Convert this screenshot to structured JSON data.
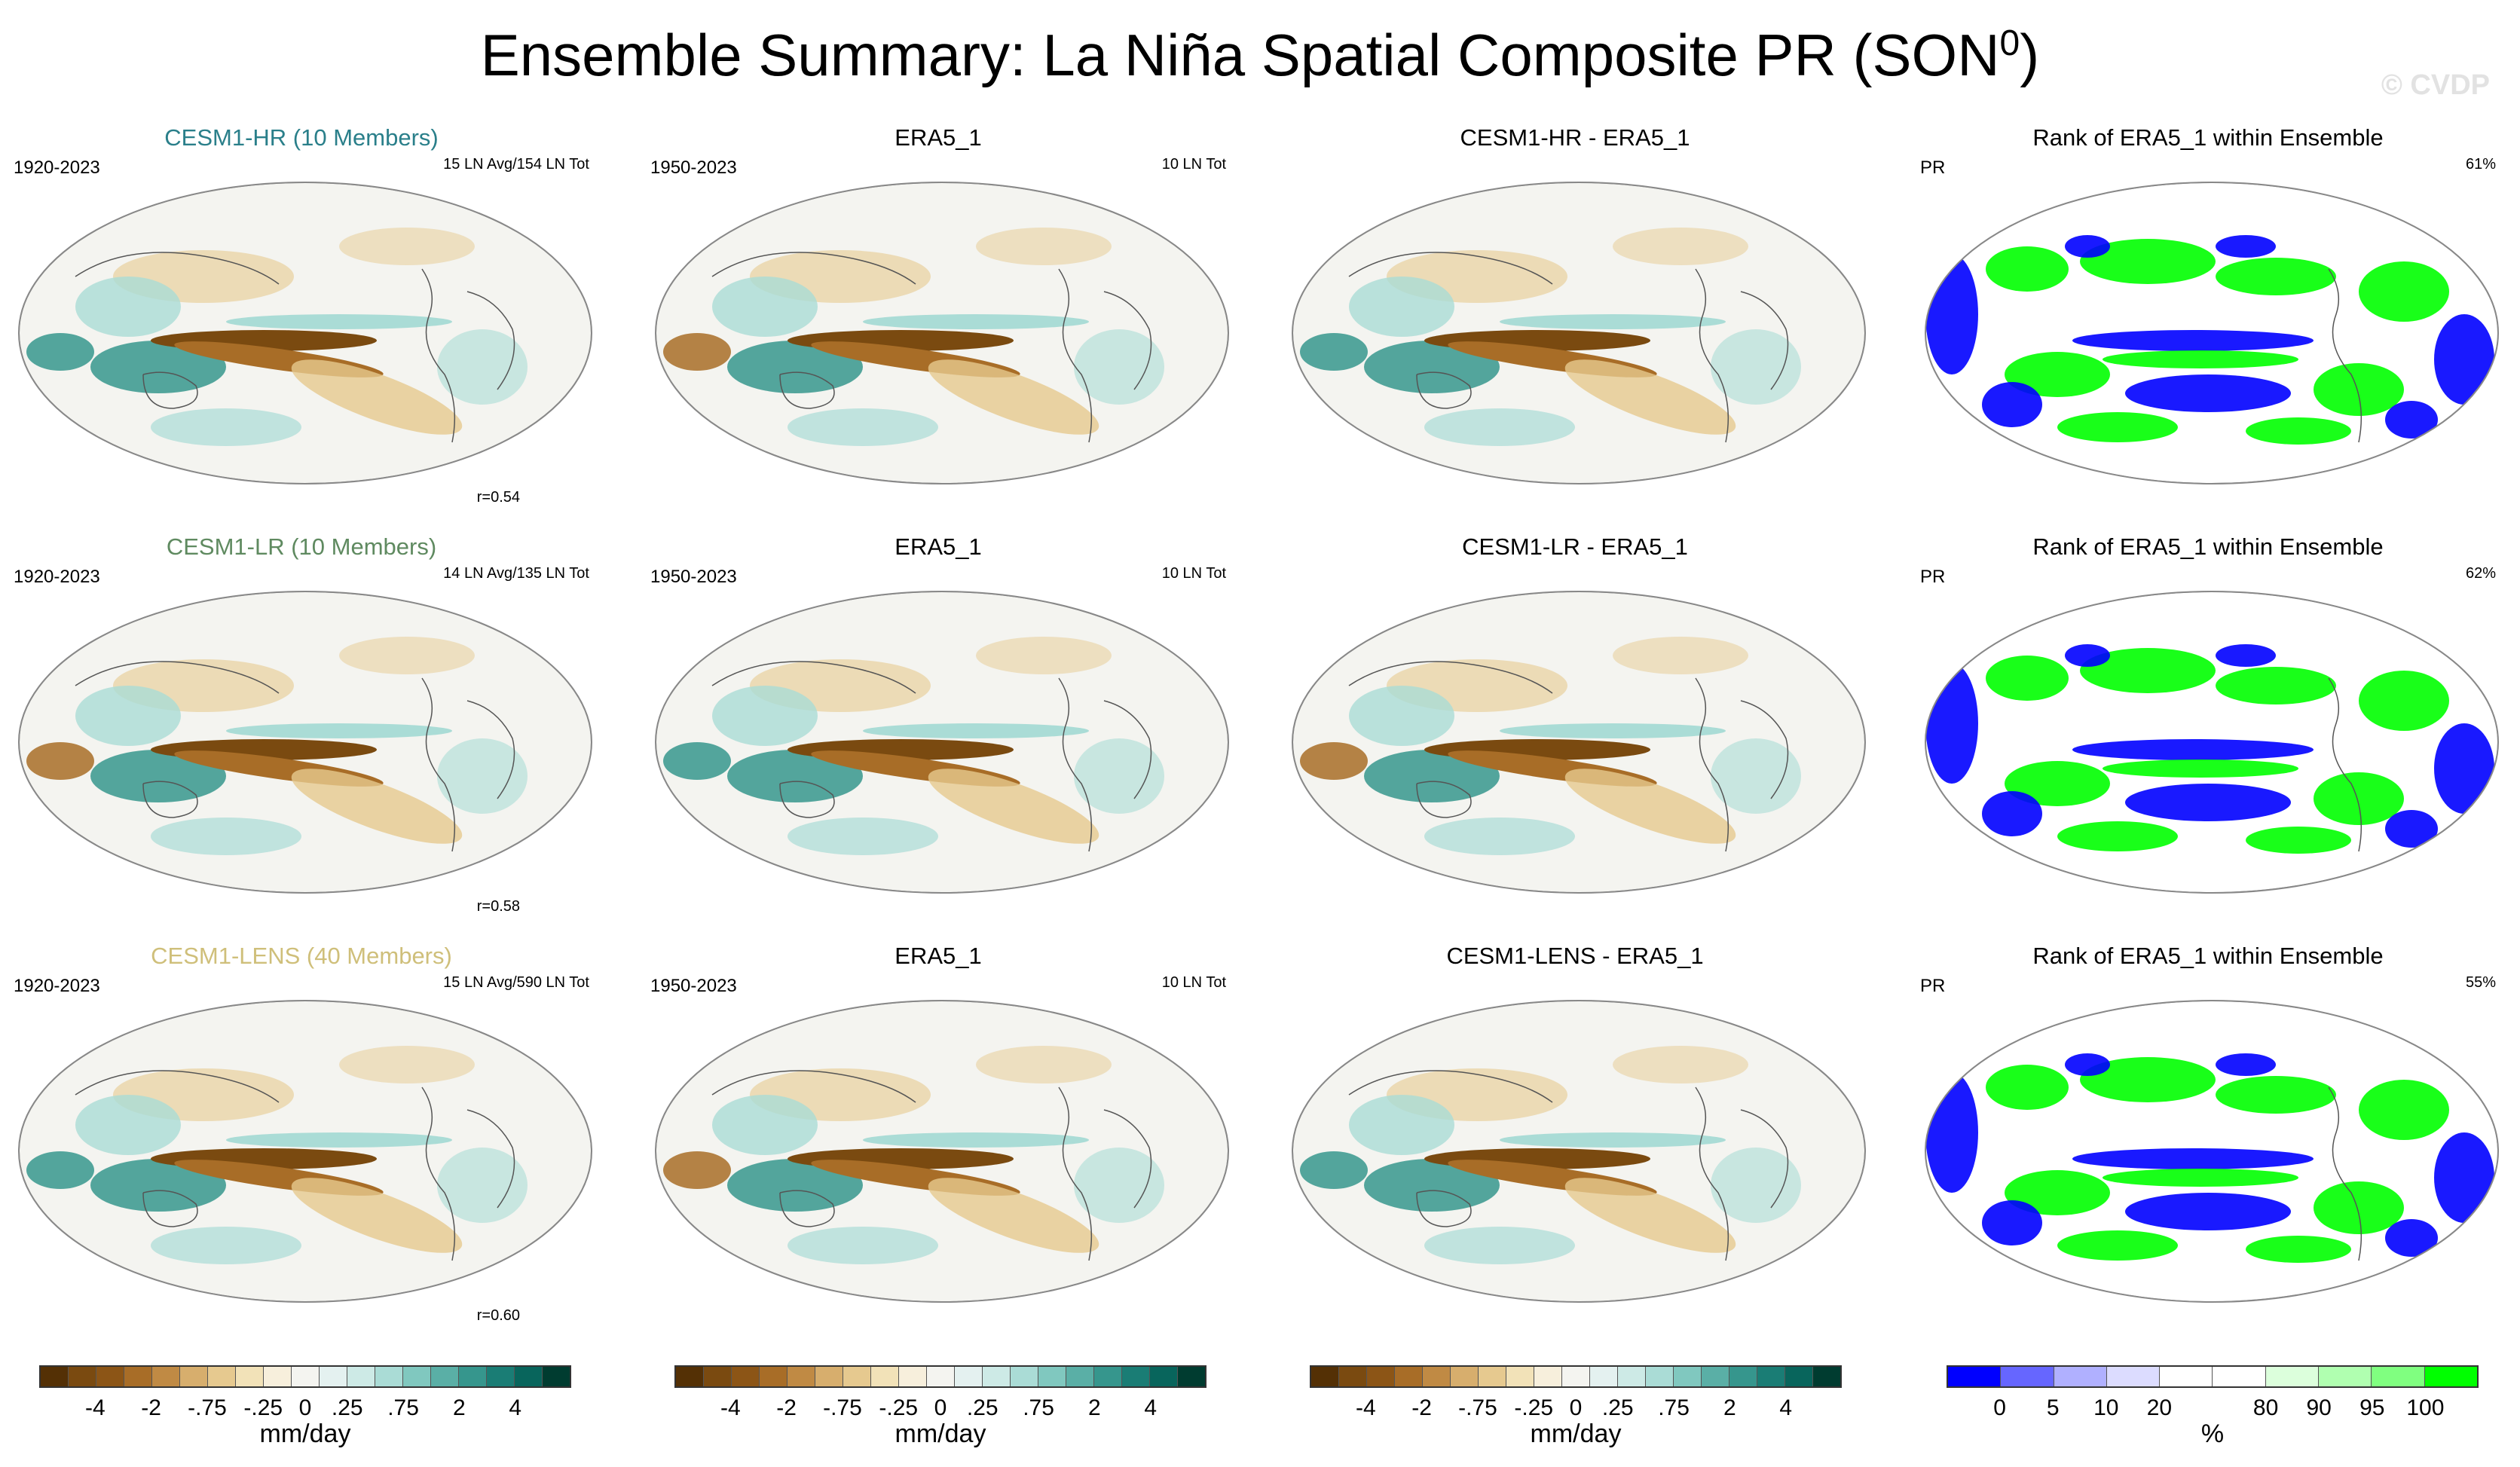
{
  "title_main": "Ensemble Summary: La Niña Spatial Composite PR (SON",
  "title_sup": "0",
  "title_end": ")",
  "watermark": "© CVDP",
  "rows": [
    {
      "panels": [
        {
          "title": "CESM1-HR (10 Members)",
          "title_color": "#2a7f8a",
          "left": "1920-2023",
          "right": "15 LN Avg/154 LN Tot",
          "r": "r=0.54",
          "kind": "diverging"
        },
        {
          "title": "ERA5_1",
          "title_color": "#000000",
          "left": "1950-2023",
          "right": "10 LN Tot",
          "r": "",
          "kind": "diverging"
        },
        {
          "title": "CESM1-HR - ERA5_1",
          "title_color": "#000000",
          "left": "",
          "right": "",
          "r": "",
          "kind": "diverging"
        },
        {
          "title": "Rank of ERA5_1 within Ensemble",
          "title_color": "#000000",
          "left": "PR",
          "right": "61%",
          "r": "",
          "kind": "rank"
        }
      ]
    },
    {
      "panels": [
        {
          "title": "CESM1-LR (10 Members)",
          "title_color": "#5f8a60",
          "left": "1920-2023",
          "right": "14 LN Avg/135 LN Tot",
          "r": "r=0.58",
          "kind": "diverging"
        },
        {
          "title": "ERA5_1",
          "title_color": "#000000",
          "left": "1950-2023",
          "right": "10 LN Tot",
          "r": "",
          "kind": "diverging"
        },
        {
          "title": "CESM1-LR - ERA5_1",
          "title_color": "#000000",
          "left": "",
          "right": "",
          "r": "",
          "kind": "diverging"
        },
        {
          "title": "Rank of ERA5_1 within Ensemble",
          "title_color": "#000000",
          "left": "PR",
          "right": "62%",
          "r": "",
          "kind": "rank"
        }
      ]
    },
    {
      "panels": [
        {
          "title": "CESM1-LENS (40 Members)",
          "title_color": "#cfbf7a",
          "left": "1920-2023",
          "right": "15 LN Avg/590 LN Tot",
          "r": "r=0.60",
          "kind": "diverging"
        },
        {
          "title": "ERA5_1",
          "title_color": "#000000",
          "left": "1950-2023",
          "right": "10 LN Tot",
          "r": "",
          "kind": "diverging"
        },
        {
          "title": "CESM1-LENS - ERA5_1",
          "title_color": "#000000",
          "left": "",
          "right": "",
          "r": "",
          "kind": "diverging"
        },
        {
          "title": "Rank of ERA5_1 within Ensemble",
          "title_color": "#000000",
          "left": "PR",
          "right": "55%",
          "r": "",
          "kind": "rank"
        }
      ]
    }
  ],
  "diverging_colorbar": {
    "colors": [
      "#543005",
      "#7a4a10",
      "#8c5516",
      "#a86d27",
      "#c08a44",
      "#d7ae6d",
      "#e6c98f",
      "#f2e2b8",
      "#f7efdc",
      "#f4f4f0",
      "#e4f1f0",
      "#cdeae6",
      "#aadcd6",
      "#80c8bf",
      "#5aafa6",
      "#36968d",
      "#1a7d75",
      "#08655c",
      "#003c30"
    ],
    "ticks": [
      "-4",
      "-2",
      "-.75",
      "-.25",
      "0",
      ".25",
      ".75",
      "2",
      "4"
    ],
    "unit": "mm/day"
  },
  "rank_colorbar": {
    "colors": [
      "#0000ff",
      "#6666ff",
      "#b0b0ff",
      "#dcdcff",
      "#ffffff",
      "#ffffff",
      "#dcffdc",
      "#b0ffb0",
      "#80ff80",
      "#00ff00"
    ],
    "ticks": [
      "0",
      "5",
      "10",
      "20",
      "80",
      "90",
      "95",
      "100"
    ],
    "unit": "%"
  },
  "map_colors": {
    "ocean_base": "#f4f4f0",
    "brown": "#a86d27",
    "dark_brown": "#7a4a10",
    "tan": "#e6c98f",
    "teal": "#36968d",
    "light_teal": "#aadcd6",
    "rank_blue": "#0000ff",
    "rank_green": "#00ff00"
  }
}
